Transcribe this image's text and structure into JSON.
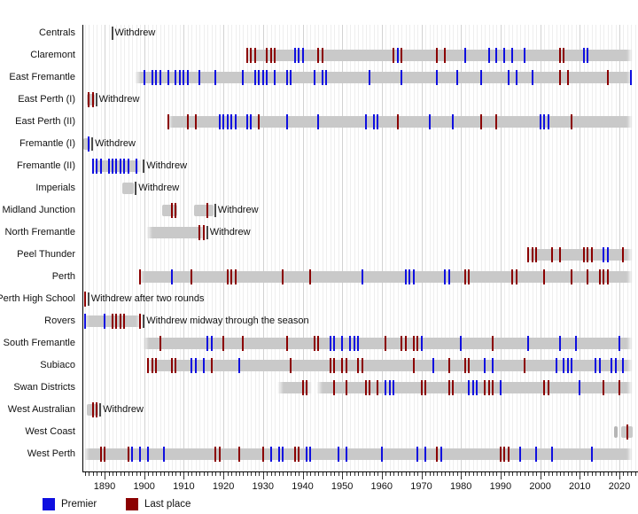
{
  "chart_data": {
    "type": "timeline",
    "description": "Timeline of WAFL clubs: seasons contested (grey bars), premierships and last places by year",
    "x_axis": {
      "year_start": 1885,
      "year_end": 2024,
      "tick_years": [
        1890,
        1900,
        1910,
        1920,
        1930,
        1940,
        1950,
        1960,
        1970,
        1980,
        1990,
        2000,
        2010,
        2020
      ]
    },
    "legend": [
      {
        "label": "Premier",
        "color": "#0f0fe0"
      },
      {
        "label": "Last place",
        "color": "#8b0000"
      }
    ],
    "bar_color": "#c9c9c9",
    "teams": [
      {
        "name": "Centrals",
        "segments": [
          [
            1891,
            1891
          ]
        ],
        "premiers": [],
        "last_place": [],
        "note": "Withdrew"
      },
      {
        "name": "Claremont",
        "segments": [
          [
            1926,
            2023
          ]
        ],
        "premiers": [
          1938,
          1939,
          1940,
          1964,
          1981,
          1987,
          1989,
          1991,
          1993,
          1996,
          2011,
          2012
        ],
        "last_place": [
          1926,
          1927,
          1928,
          1931,
          1932,
          1933,
          1944,
          1945,
          1963,
          1965,
          1974,
          1976,
          2005,
          2006
        ]
      },
      {
        "name": "East Fremantle",
        "segments": [
          [
            1898,
            2023
          ]
        ],
        "premiers": [
          1900,
          1902,
          1903,
          1904,
          1906,
          1908,
          1909,
          1910,
          1911,
          1914,
          1918,
          1925,
          1928,
          1929,
          1930,
          1931,
          1933,
          1936,
          1937,
          1943,
          1945,
          1946,
          1957,
          1965,
          1974,
          1979,
          1985,
          1992,
          1994,
          1998,
          2023
        ],
        "last_place": [
          2005,
          2007,
          2017
        ]
      },
      {
        "name": "East Perth (I)",
        "segments": [
          [
            1886,
            1887
          ]
        ],
        "premiers": [],
        "last_place": [
          1886,
          1887
        ],
        "note": "Withdrew"
      },
      {
        "name": "East Perth (II)",
        "segments": [
          [
            1906,
            2023
          ]
        ],
        "premiers": [
          1919,
          1920,
          1921,
          1922,
          1923,
          1926,
          1927,
          1936,
          1944,
          1956,
          1958,
          1959,
          1972,
          1978,
          2000,
          2001,
          2002
        ],
        "last_place": [
          1906,
          1911,
          1913,
          1929,
          1964,
          1985,
          1989,
          2008
        ]
      },
      {
        "name": "Fremantle (I)",
        "segments": [
          [
            1885,
            1886
          ]
        ],
        "premiers": [
          1886
        ],
        "last_place": [],
        "note": "Withdrew"
      },
      {
        "name": "Fremantle (II)",
        "segments": [
          [
            1887,
            1899
          ]
        ],
        "premiers": [
          1887,
          1888,
          1889,
          1891,
          1892,
          1893,
          1894,
          1895,
          1896,
          1898
        ],
        "last_place": [],
        "note": "Withdrew"
      },
      {
        "name": "Imperials",
        "segments": [
          [
            1895,
            1897
          ]
        ],
        "premiers": [],
        "last_place": [],
        "note": "Withdrew"
      },
      {
        "name": "Midland Junction",
        "segments": [
          [
            1905,
            1908
          ],
          [
            1913,
            1917
          ]
        ],
        "premiers": [],
        "last_place": [
          1907,
          1908,
          1916
        ],
        "note": "Withdrew"
      },
      {
        "name": "North Fremantle",
        "segments": [
          [
            1901,
            1915
          ]
        ],
        "premiers": [],
        "last_place": [
          1914,
          1915
        ],
        "note": "Withdrew"
      },
      {
        "name": "Peel Thunder",
        "segments": [
          [
            1997,
            2023
          ]
        ],
        "premiers": [
          2016,
          2017
        ],
        "last_place": [
          1997,
          1998,
          1999,
          2003,
          2005,
          2011,
          2012,
          2013,
          2021
        ]
      },
      {
        "name": "Perth",
        "segments": [
          [
            1899,
            2023
          ]
        ],
        "premiers": [
          1907,
          1955,
          1966,
          1967,
          1968,
          1976,
          1977
        ],
        "last_place": [
          1899,
          1912,
          1921,
          1922,
          1923,
          1935,
          1942,
          1981,
          1982,
          1993,
          1994,
          2001,
          2008,
          2012,
          2015,
          2016,
          2017
        ]
      },
      {
        "name": "Perth High School",
        "segments": [
          [
            1885,
            1885
          ]
        ],
        "premiers": [],
        "last_place": [
          1885
        ],
        "note": "Withdrew after two rounds"
      },
      {
        "name": "Rovers",
        "segments": [
          [
            1885,
            1899
          ]
        ],
        "premiers": [
          1885,
          1890
        ],
        "last_place": [
          1892,
          1893,
          1894,
          1895,
          1899
        ],
        "note": "Withdrew midway through the season"
      },
      {
        "name": "South Fremantle",
        "segments": [
          [
            1900,
            2023
          ]
        ],
        "premiers": [
          1916,
          1917,
          1947,
          1948,
          1950,
          1952,
          1953,
          1954,
          1970,
          1980,
          1997,
          2005,
          2009,
          2020
        ],
        "last_place": [
          1904,
          1920,
          1925,
          1936,
          1943,
          1944,
          1961,
          1965,
          1966,
          1968,
          1969,
          1988
        ]
      },
      {
        "name": "Subiaco",
        "segments": [
          [
            1901,
            2023
          ]
        ],
        "premiers": [
          1912,
          1913,
          1915,
          1924,
          1973,
          1986,
          1988,
          2004,
          2006,
          2007,
          2008,
          2014,
          2015,
          2018,
          2019,
          2021
        ],
        "last_place": [
          1901,
          1902,
          1903,
          1907,
          1908,
          1917,
          1937,
          1947,
          1948,
          1950,
          1951,
          1954,
          1955,
          1968,
          1977,
          1981,
          1982,
          1996
        ]
      },
      {
        "name": "Swan Districts",
        "segments": [
          [
            1934,
            1942
          ],
          [
            1944,
            2023
          ]
        ],
        "premiers": [
          1961,
          1962,
          1963,
          1982,
          1983,
          1984,
          1990,
          2010
        ],
        "last_place": [
          1940,
          1941,
          1948,
          1951,
          1956,
          1957,
          1959,
          1970,
          1971,
          1977,
          1978,
          1986,
          1987,
          1988,
          2001,
          2002,
          2016,
          2020
        ]
      },
      {
        "name": "West Australian",
        "segments": [
          [
            1886,
            1888
          ]
        ],
        "premiers": [],
        "last_place": [
          1887,
          1888
        ],
        "note": "Withdrew"
      },
      {
        "name": "West Coast",
        "segments": [
          [
            2019,
            2019
          ],
          [
            2021,
            2023
          ]
        ],
        "premiers": [],
        "last_place": [
          2022
        ]
      },
      {
        "name": "West Perth",
        "segments": [
          [
            1885,
            2023
          ]
        ],
        "premiers": [
          1897,
          1899,
          1901,
          1905,
          1932,
          1934,
          1935,
          1941,
          1942,
          1949,
          1951,
          1960,
          1969,
          1971,
          1975,
          1995,
          1999,
          2003,
          2013
        ],
        "last_place": [
          1889,
          1890,
          1896,
          1918,
          1919,
          1924,
          1930,
          1938,
          1939,
          1974,
          1990,
          1991,
          1992
        ]
      }
    ]
  }
}
